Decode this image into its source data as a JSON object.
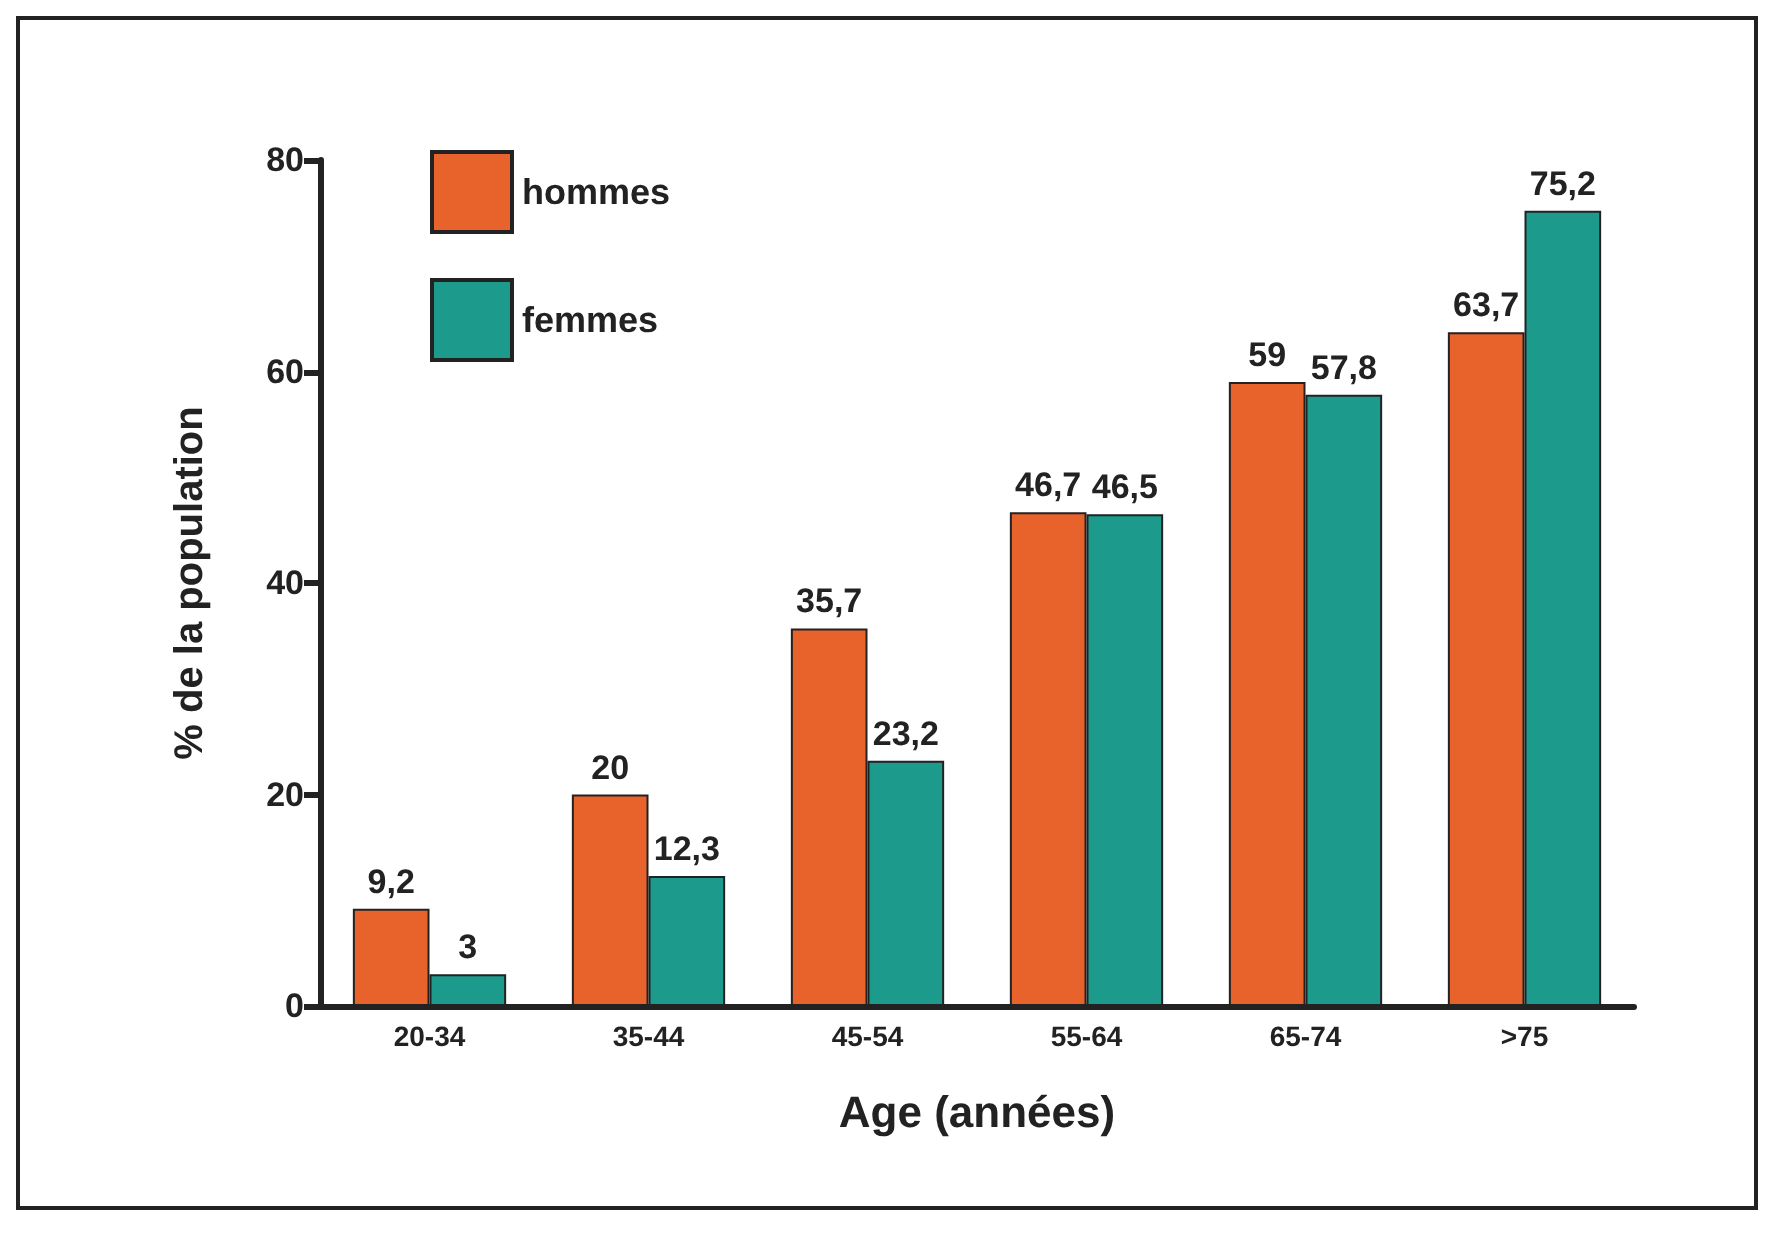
{
  "chart_data": {
    "type": "bar",
    "xlabel": "Age (années)",
    "ylabel": "% de la population",
    "categories": [
      "20-34",
      "35-44",
      "45-54",
      "55-64",
      "65-74",
      ">75"
    ],
    "series": [
      {
        "name": "hommes",
        "color": "#e8622c",
        "values": [
          9.2,
          20,
          35.7,
          46.7,
          59,
          63.7
        ],
        "value_labels": [
          "9,2",
          "20",
          "35,7",
          "46,7",
          "59",
          "63,7"
        ]
      },
      {
        "name": "femmes",
        "color": "#1c9a8c",
        "values": [
          3,
          12.3,
          23.2,
          46.5,
          57.8,
          75.2
        ],
        "value_labels": [
          "3",
          "12,3",
          "23,2",
          "46,5",
          "57,8",
          "75,2"
        ]
      }
    ],
    "ylim": [
      0,
      80
    ],
    "yticks": [
      0,
      20,
      40,
      60,
      80
    ],
    "grid": false,
    "legend": "top left"
  }
}
